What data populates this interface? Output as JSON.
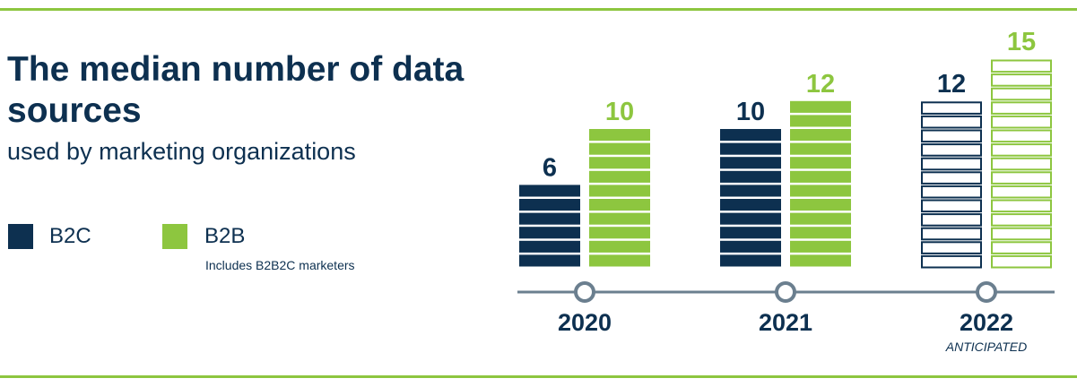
{
  "title": "The median number of data sources",
  "subtitle": "used by marketing organizations",
  "legend": {
    "items": [
      {
        "label": "B2C",
        "color": "#0d3050"
      },
      {
        "label": "B2B",
        "color": "#8dc63f",
        "note": "Includes B2B2C marketers"
      }
    ]
  },
  "chart_data": {
    "type": "bar",
    "categories": [
      "2020",
      "2021",
      "2022"
    ],
    "category_notes": [
      "",
      "",
      "ANTICIPATED"
    ],
    "series": [
      {
        "name": "B2C",
        "values": [
          6,
          10,
          12
        ],
        "color": "#0d3050"
      },
      {
        "name": "B2B",
        "values": [
          10,
          12,
          15
        ],
        "color": "#8dc63f"
      }
    ],
    "anticipated_categories": [
      "2022"
    ],
    "ylim": [
      0,
      15
    ],
    "grid": false,
    "legend_position": "left"
  }
}
